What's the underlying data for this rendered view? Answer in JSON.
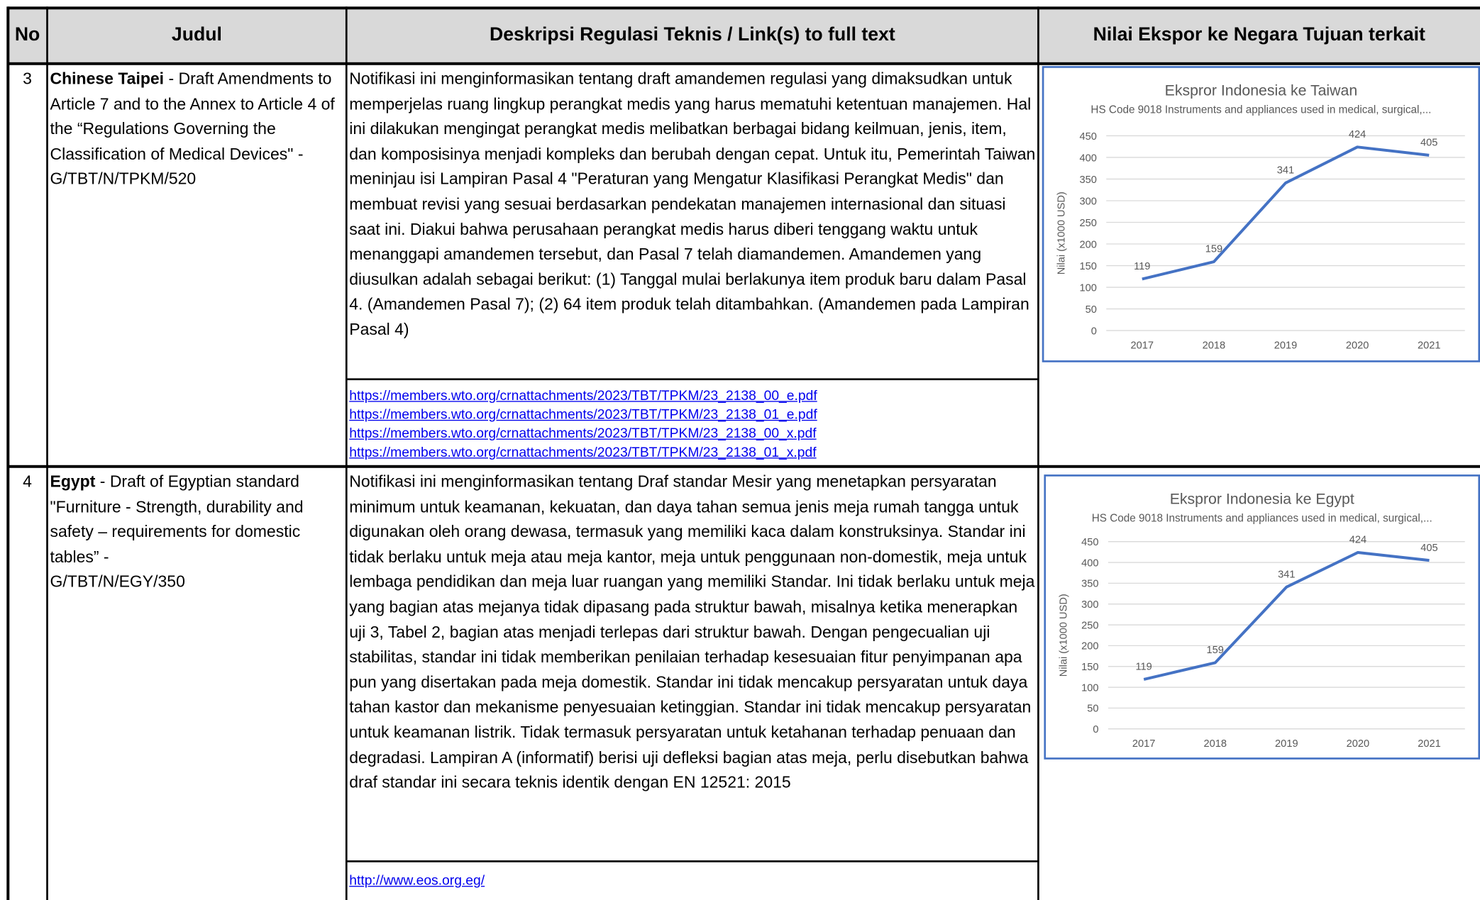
{
  "table": {
    "headers": [
      "No",
      "Judul",
      "Deskripsi Regulasi Teknis / Link(s) to full text",
      "Nilai Ekspor ke Negara Tujuan terkait"
    ],
    "rows": [
      {
        "no": "3",
        "country": "Chinese Taipei",
        "title": " - Draft Amendments to Article 7 and to the Annex to Article 4 of the “Regulations Governing the Classification of Medical Devices\" -",
        "code": "G/TBT/N/TPKM/520",
        "description": "Notifikasi ini menginformasikan tentang draft amandemen regulasi yang dimaksudkan untuk memperjelas ruang lingkup perangkat medis yang harus mematuhi ketentuan manajemen. Hal ini dilakukan mengingat perangkat medis melibatkan berbagai bidang keilmuan, jenis, item, dan komposisinya menjadi kompleks dan berubah dengan cepat. Untuk itu, Pemerintah Taiwan meninjau isi Lampiran Pasal 4 \"Peraturan yang Mengatur Klasifikasi Perangkat Medis\" dan membuat revisi yang sesuai berdasarkan pendekatan manajemen internasional dan situasi saat ini. Diakui bahwa perusahaan perangkat medis harus diberi tenggang waktu untuk menanggapi amandemen tersebut, dan Pasal 7 telah diamandemen. Amandemen yang diusulkan adalah sebagai berikut: (1) Tanggal mulai berlakunya item produk baru dalam Pasal 4. (Amandemen Pasal 7); (2) 64 item produk telah ditambahkan. (Amandemen pada Lampiran Pasal 4)",
        "links": [
          "https://members.wto.org/crnattachments/2023/TBT/TPKM/23_2138_00_e.pdf",
          "https://members.wto.org/crnattachments/2023/TBT/TPKM/23_2138_01_e.pdf",
          "https://members.wto.org/crnattachments/2023/TBT/TPKM/23_2138_00_x.pdf",
          "https://members.wto.org/crnattachments/2023/TBT/TPKM/23_2138_01_x.pdf"
        ],
        "chart": {
          "type": "line",
          "title": "Ekspror Indonesia ke Taiwan",
          "subtitle": "HS Code 9018 Instruments and appliances used in medical, surgical,...",
          "y_label": "Nilai (x1000 USD)",
          "categories": [
            "2017",
            "2018",
            "2019",
            "2020",
            "2021"
          ],
          "values": [
            119,
            159,
            341,
            424,
            405
          ],
          "color": "#4472c4",
          "ylim": [
            0,
            450
          ],
          "yticks": [
            0,
            50,
            100,
            150,
            200,
            250,
            300,
            350,
            400,
            450
          ],
          "grid": true
        }
      },
      {
        "no": "4",
        "country": "Egypt",
        "title": " - Draft of Egyptian standard \"Furniture - Strength, durability and safety – requirements for domestic tables”  -",
        "code": "G/TBT/N/EGY/350",
        "description": "Notifikasi ini menginformasikan tentang Draf standar Mesir yang menetapkan persyaratan minimum untuk keamanan, kekuatan, dan daya tahan semua jenis meja rumah tangga untuk digunakan oleh orang dewasa, termasuk yang memiliki kaca dalam konstruksinya. Standar ini tidak berlaku untuk meja atau meja kantor, meja untuk penggunaan non-domestik, meja untuk lembaga pendidikan dan meja luar ruangan yang memiliki Standar. Ini tidak berlaku untuk meja yang bagian atas mejanya tidak dipasang pada struktur bawah, misalnya ketika menerapkan uji 3, Tabel 2, bagian atas menjadi terlepas dari struktur bawah. Dengan pengecualian uji stabilitas, standar ini tidak memberikan penilaian terhadap kesesuaian fitur penyimpanan apa pun yang disertakan pada meja domestik. Standar ini tidak mencakup persyaratan untuk daya tahan kastor dan mekanisme penyesuaian ketinggian. Standar ini tidak mencakup persyaratan untuk keamanan listrik. Tidak termasuk persyaratan untuk ketahanan terhadap penuaan dan degradasi. Lampiran A (informatif) berisi uji defleksi bagian atas meja, perlu disebutkan bahwa draf standar ini secara teknis identik dengan EN 12521: 2015",
        "links": [
          "http://www.eos.org.eg/"
        ],
        "chart": {
          "type": "line",
          "title": "Ekspror Indonesia ke Egypt",
          "subtitle": "HS Code 9018 Instruments and appliances used in medical, surgical,...",
          "y_label": "Nilai (x1000 USD)",
          "categories": [
            "2017",
            "2018",
            "2019",
            "2020",
            "2021"
          ],
          "values": [
            119,
            159,
            341,
            424,
            405
          ],
          "color": "#4472c4",
          "ylim": [
            0,
            450
          ],
          "yticks": [
            0,
            50,
            100,
            150,
            200,
            250,
            300,
            350,
            400,
            450
          ],
          "grid": true
        }
      }
    ]
  }
}
